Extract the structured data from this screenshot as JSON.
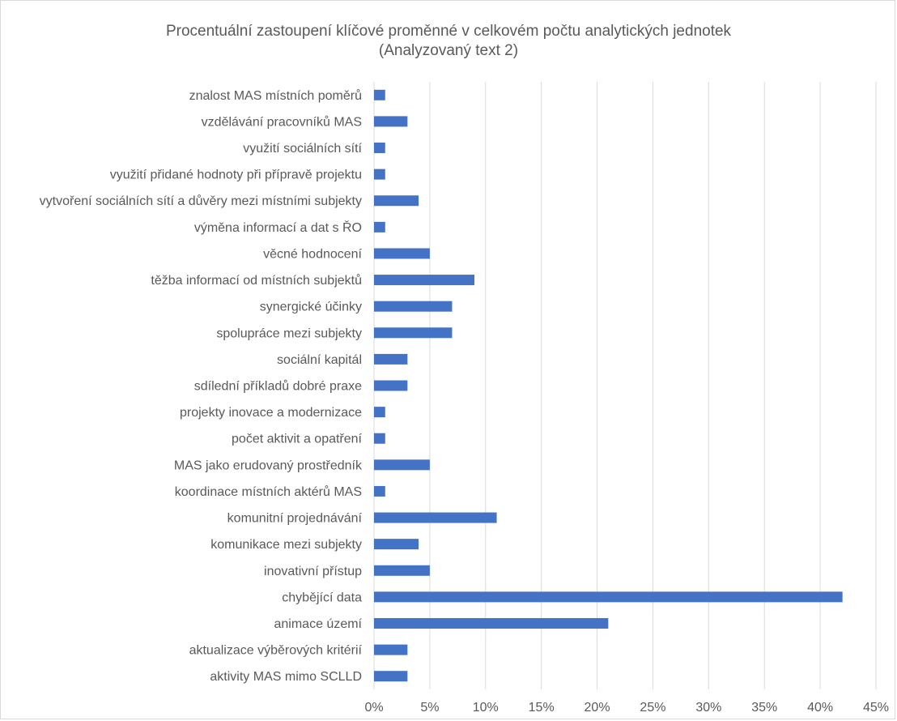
{
  "chart_data": {
    "type": "bar",
    "orientation": "horizontal",
    "title": "Procentuální zastoupení klíčové proměnné v celkovém počtu analytických jednotek",
    "subtitle": "(Analyzovaný text 2)",
    "categories": [
      "znalost MAS místních poměrů",
      "vzdělávání pracovníků MAS",
      "využití sociálních sítí",
      "využití přidané hodnoty při přípravě projektu",
      "vytvoření sociálních sítí a důvěry mezi místními subjekty",
      "výměna informací a dat s ŘO",
      "věcné hodnocení",
      "těžba informací od místních subjektů",
      "synergické účinky",
      "spolupráce mezi subjekty",
      "sociální kapitál",
      "sdílední příkladů dobré praxe",
      "projekty inovace a modernizace",
      "počet aktivit a opatření",
      "MAS jako erudovaný prostředník",
      "koordinace místních aktérů MAS",
      "komunitní projednávání",
      "komunikace mezi subjekty",
      "inovativní přístup",
      "chybějící data",
      "animace území",
      "aktualizace výběrových kritérií",
      "aktivity MAS mimo SCLLD"
    ],
    "values": [
      1,
      3,
      1,
      1,
      4,
      1,
      5,
      9,
      7,
      7,
      3,
      3,
      1,
      1,
      5,
      1,
      11,
      4,
      5,
      42,
      21,
      3,
      3
    ],
    "value_unit": "%",
    "xlim": [
      0,
      45
    ],
    "x_ticks": [
      "0%",
      "5%",
      "10%",
      "15%",
      "20%",
      "25%",
      "30%",
      "35%",
      "40%",
      "45%"
    ],
    "x_tick_values": [
      0,
      5,
      10,
      15,
      20,
      25,
      30,
      35,
      40,
      45
    ],
    "grid": "vertical",
    "legend": "none",
    "bar_color": "#4472c4",
    "grid_color": "#d9d9d9",
    "text_color": "#595959"
  }
}
